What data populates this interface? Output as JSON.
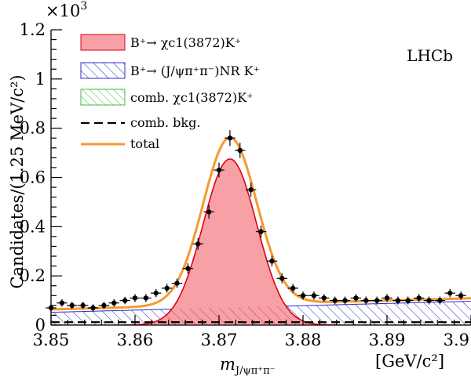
{
  "chart_data": {
    "type": "line",
    "brand_label": "LHCb",
    "y_multiplier": {
      "base": "×10",
      "exponent": "3"
    },
    "xlabel": {
      "main": "m",
      "subscript": "J/ψπ⁺π⁻"
    },
    "xunit": "[GeV/c²]",
    "ylabel": "Candidates/(1.25 MeV/c²)",
    "xlim": [
      3.85,
      3.9
    ],
    "ylim": [
      0,
      1.2
    ],
    "xticks": [
      "3.85",
      "3.86",
      "3.87",
      "3.88",
      "3.89",
      "3.9"
    ],
    "yticks": [
      "0",
      "0.2",
      "0.4",
      "0.6",
      "0.8",
      "1",
      "1.2"
    ],
    "legend": {
      "position": "top-left",
      "entries": [
        {
          "key": "signal",
          "label": "B⁺→ χc1(3872)K⁺"
        },
        {
          "key": "nonres",
          "label": "B⁺→ (J/ψπ⁺π⁻)NR K⁺"
        },
        {
          "key": "combchi",
          "label": "comb. χc1(3872)K⁺"
        },
        {
          "key": "combbkg",
          "label": "comb. bkg."
        },
        {
          "key": "total",
          "label": "total"
        }
      ]
    },
    "colors": {
      "signal_fill": "#f7a1a6",
      "signal_line": "#e00010",
      "nonres": "#2a2acc",
      "combchi": "#44bb44",
      "combbkg": "#000000",
      "total": "#f59a30",
      "data": "#000000"
    },
    "model": {
      "signal_peak": 0.675,
      "signal_mean": 3.8713,
      "signal_sigma": 0.0032,
      "nonres_start": 0.052,
      "nonres_end": 0.097,
      "comb_level": 0.012,
      "total_peak": 0.762
    },
    "data_points": {
      "x": [
        3.85,
        3.8513,
        3.8525,
        3.8538,
        3.855,
        3.8563,
        3.8575,
        3.8588,
        3.86,
        3.8613,
        3.8625,
        3.8638,
        3.865,
        3.8663,
        3.8675,
        3.8688,
        3.87,
        3.8713,
        3.8725,
        3.8738,
        3.875,
        3.8763,
        3.8775,
        3.8788,
        3.88,
        3.8813,
        3.8825,
        3.8838,
        3.885,
        3.8863,
        3.8875,
        3.8888,
        3.89,
        3.8913,
        3.8925,
        3.8938,
        3.895,
        3.8963,
        3.8975,
        3.8988
      ],
      "y": [
        0.07,
        0.09,
        0.08,
        0.08,
        0.07,
        0.08,
        0.09,
        0.1,
        0.11,
        0.11,
        0.13,
        0.15,
        0.17,
        0.23,
        0.33,
        0.46,
        0.63,
        0.76,
        0.71,
        0.55,
        0.38,
        0.26,
        0.19,
        0.15,
        0.12,
        0.12,
        0.11,
        0.1,
        0.1,
        0.11,
        0.1,
        0.1,
        0.11,
        0.1,
        0.1,
        0.11,
        0.1,
        0.1,
        0.13,
        0.12
      ],
      "yerr": [
        0.015,
        0.015,
        0.015,
        0.015,
        0.015,
        0.015,
        0.015,
        0.015,
        0.016,
        0.016,
        0.017,
        0.018,
        0.019,
        0.021,
        0.024,
        0.027,
        0.03,
        0.032,
        0.031,
        0.028,
        0.025,
        0.022,
        0.02,
        0.018,
        0.017,
        0.017,
        0.016,
        0.016,
        0.016,
        0.016,
        0.016,
        0.016,
        0.016,
        0.016,
        0.016,
        0.016,
        0.016,
        0.016,
        0.017,
        0.017
      ]
    }
  }
}
